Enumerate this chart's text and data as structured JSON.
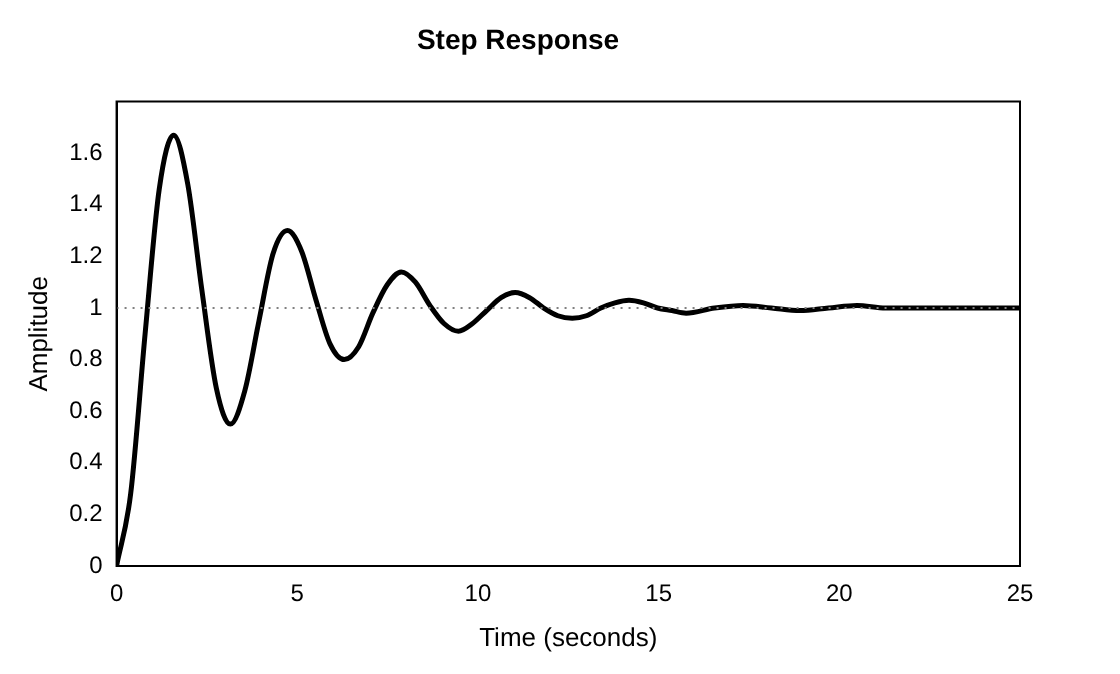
{
  "chart_data": {
    "type": "line",
    "title": "Step Response",
    "xlabel": "Time (seconds)",
    "ylabel": "Amplitude",
    "x": [
      0,
      0.39,
      0.79,
      1.18,
      1.58,
      1.97,
      2.36,
      2.76,
      3.15,
      3.55,
      3.94,
      4.33,
      4.73,
      5.12,
      5.52,
      5.91,
      6.3,
      6.7,
      7.09,
      7.49,
      7.88,
      8.27,
      8.67,
      9.06,
      9.46,
      9.85,
      10.24,
      10.64,
      11.03,
      11.43,
      11.82,
      12.21,
      12.61,
      13.0,
      13.4,
      13.79,
      14.18,
      14.58,
      14.97,
      15.37,
      15.76,
      16.55,
      17.34,
      18.12,
      18.91,
      19.7,
      20.49,
      21.28,
      22.06,
      23.64,
      25
    ],
    "series": [
      {
        "color": "#000000",
        "values": [
          0,
          0.28,
          0.9,
          1.46,
          1.67,
          1.48,
          1.07,
          0.69,
          0.55,
          0.68,
          0.95,
          1.21,
          1.3,
          1.22,
          1.03,
          0.86,
          0.8,
          0.85,
          0.98,
          1.09,
          1.14,
          1.1,
          1.01,
          0.94,
          0.91,
          0.94,
          0.99,
          1.04,
          1.06,
          1.04,
          1.0,
          0.97,
          0.96,
          0.97,
          1.0,
          1.02,
          1.03,
          1.02,
          1.0,
          0.99,
          0.98,
          1.0,
          1.01,
          1.0,
          0.99,
          1.0,
          1.01,
          1.0,
          1.0,
          1.0,
          1.0
        ]
      }
    ],
    "xlim": [
      0,
      25
    ],
    "xticks": [
      0,
      5,
      10,
      15,
      20,
      25
    ],
    "ylim": [
      0,
      1.8
    ],
    "yticks": [
      0,
      0.2,
      0.4,
      0.6,
      0.8,
      1,
      1.2,
      1.4,
      1.6
    ],
    "ref_lines": [
      {
        "axis": "y",
        "value": 1,
        "color": "#808080",
        "line_style": "dotted"
      }
    ],
    "grid": false,
    "legend": false,
    "marker": "none",
    "line_style": "solid"
  }
}
